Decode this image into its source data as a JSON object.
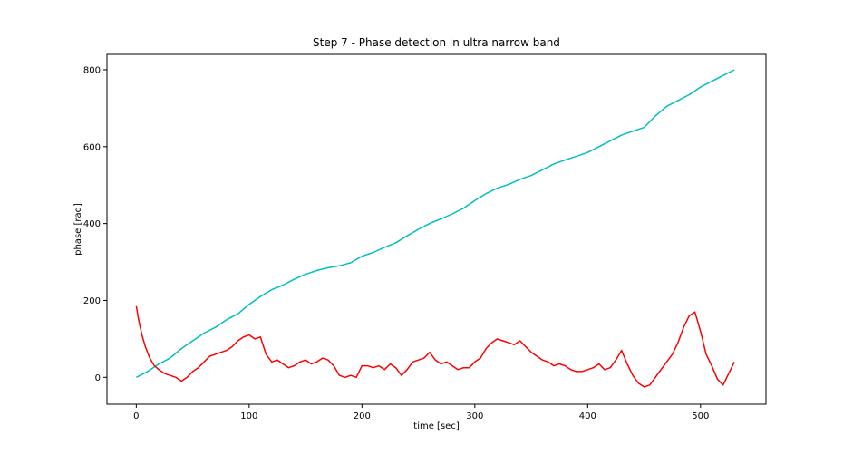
{
  "chart_data": {
    "type": "line",
    "title": "Step 7 - Phase detection in ultra narrow band",
    "xlabel": "time [sec]",
    "ylabel": "phase [rad]",
    "xlim": [
      -26,
      558
    ],
    "ylim": [
      -70,
      840
    ],
    "xticks": [
      0,
      100,
      200,
      300,
      400,
      500
    ],
    "yticks": [
      0,
      200,
      400,
      600,
      800
    ],
    "grid": false,
    "legend": "none",
    "series": [
      {
        "color": "#00bfbf",
        "x": [
          0,
          10,
          20,
          30,
          40,
          50,
          60,
          70,
          80,
          90,
          100,
          110,
          120,
          130,
          140,
          150,
          160,
          170,
          180,
          190,
          200,
          210,
          220,
          230,
          240,
          250,
          260,
          270,
          280,
          290,
          300,
          310,
          320,
          330,
          340,
          350,
          360,
          370,
          380,
          390,
          400,
          410,
          420,
          430,
          440,
          450,
          460,
          470,
          480,
          490,
          500,
          510,
          520,
          530
        ],
        "y": [
          0,
          15,
          35,
          50,
          75,
          95,
          115,
          130,
          150,
          165,
          190,
          210,
          228,
          240,
          255,
          268,
          278,
          285,
          290,
          298,
          315,
          325,
          338,
          350,
          368,
          385,
          400,
          412,
          425,
          440,
          460,
          478,
          492,
          502,
          515,
          525,
          540,
          555,
          565,
          575,
          585,
          600,
          615,
          630,
          640,
          650,
          680,
          705,
          720,
          735,
          755,
          770,
          785,
          800
        ]
      },
      {
        "color": "#ff0000",
        "x": [
          0,
          2,
          5,
          8,
          12,
          16,
          20,
          25,
          30,
          35,
          40,
          45,
          50,
          55,
          60,
          65,
          70,
          75,
          80,
          85,
          90,
          95,
          100,
          105,
          110,
          115,
          120,
          125,
          130,
          135,
          140,
          145,
          150,
          155,
          160,
          165,
          170,
          175,
          180,
          185,
          190,
          195,
          200,
          205,
          210,
          215,
          220,
          225,
          230,
          235,
          240,
          245,
          250,
          255,
          260,
          265,
          270,
          275,
          280,
          285,
          290,
          295,
          300,
          305,
          310,
          315,
          320,
          325,
          330,
          335,
          340,
          345,
          350,
          355,
          360,
          365,
          370,
          375,
          380,
          385,
          390,
          395,
          400,
          405,
          410,
          415,
          420,
          425,
          430,
          435,
          440,
          445,
          450,
          455,
          460,
          465,
          470,
          475,
          480,
          485,
          490,
          495,
          500,
          505,
          510,
          515,
          520,
          525,
          530
        ],
        "y": [
          185,
          150,
          110,
          80,
          50,
          30,
          20,
          10,
          5,
          0,
          -10,
          0,
          15,
          25,
          40,
          55,
          60,
          65,
          70,
          80,
          95,
          105,
          110,
          100,
          105,
          60,
          40,
          45,
          35,
          25,
          30,
          40,
          45,
          35,
          40,
          50,
          45,
          30,
          5,
          0,
          5,
          0,
          30,
          30,
          25,
          30,
          20,
          35,
          25,
          5,
          20,
          40,
          45,
          50,
          65,
          45,
          35,
          40,
          30,
          20,
          25,
          25,
          40,
          50,
          75,
          90,
          100,
          95,
          90,
          85,
          95,
          80,
          65,
          55,
          45,
          40,
          30,
          35,
          30,
          20,
          15,
          15,
          20,
          25,
          35,
          20,
          25,
          45,
          70,
          35,
          5,
          -15,
          -25,
          -20,
          0,
          20,
          40,
          60,
          90,
          130,
          160,
          170,
          120,
          60,
          30,
          -5,
          -20,
          10,
          40
        ]
      }
    ]
  }
}
